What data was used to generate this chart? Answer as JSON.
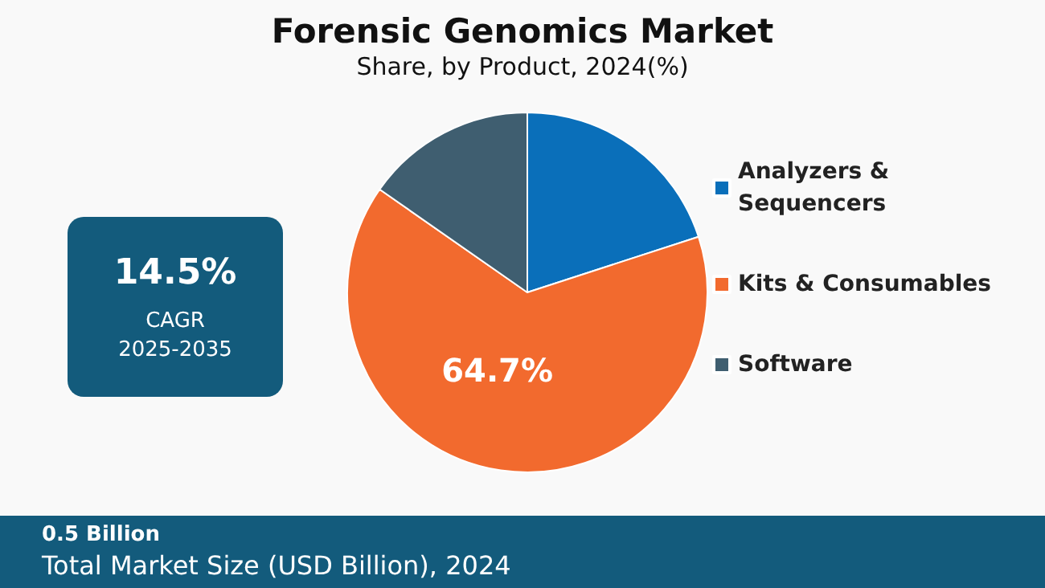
{
  "chart_data": {
    "type": "pie",
    "title": "Forensic Genomics Market",
    "subtitle": "Share, by Product, 2024(%)",
    "categories": [
      "Analyzers & Sequencers",
      "Kits & Consumables",
      "Software"
    ],
    "values": [
      20.0,
      64.7,
      15.3
    ],
    "colors": [
      "#0a6fba",
      "#f26a2e",
      "#3f5e70"
    ],
    "value_labels": [
      null,
      "64.7%",
      null
    ],
    "legend": "right",
    "annotations": [
      "14.5%",
      "CAGR",
      "2025-2035",
      "0.5 Billion",
      "Total Market Size (USD Billion), 2024"
    ]
  }
}
